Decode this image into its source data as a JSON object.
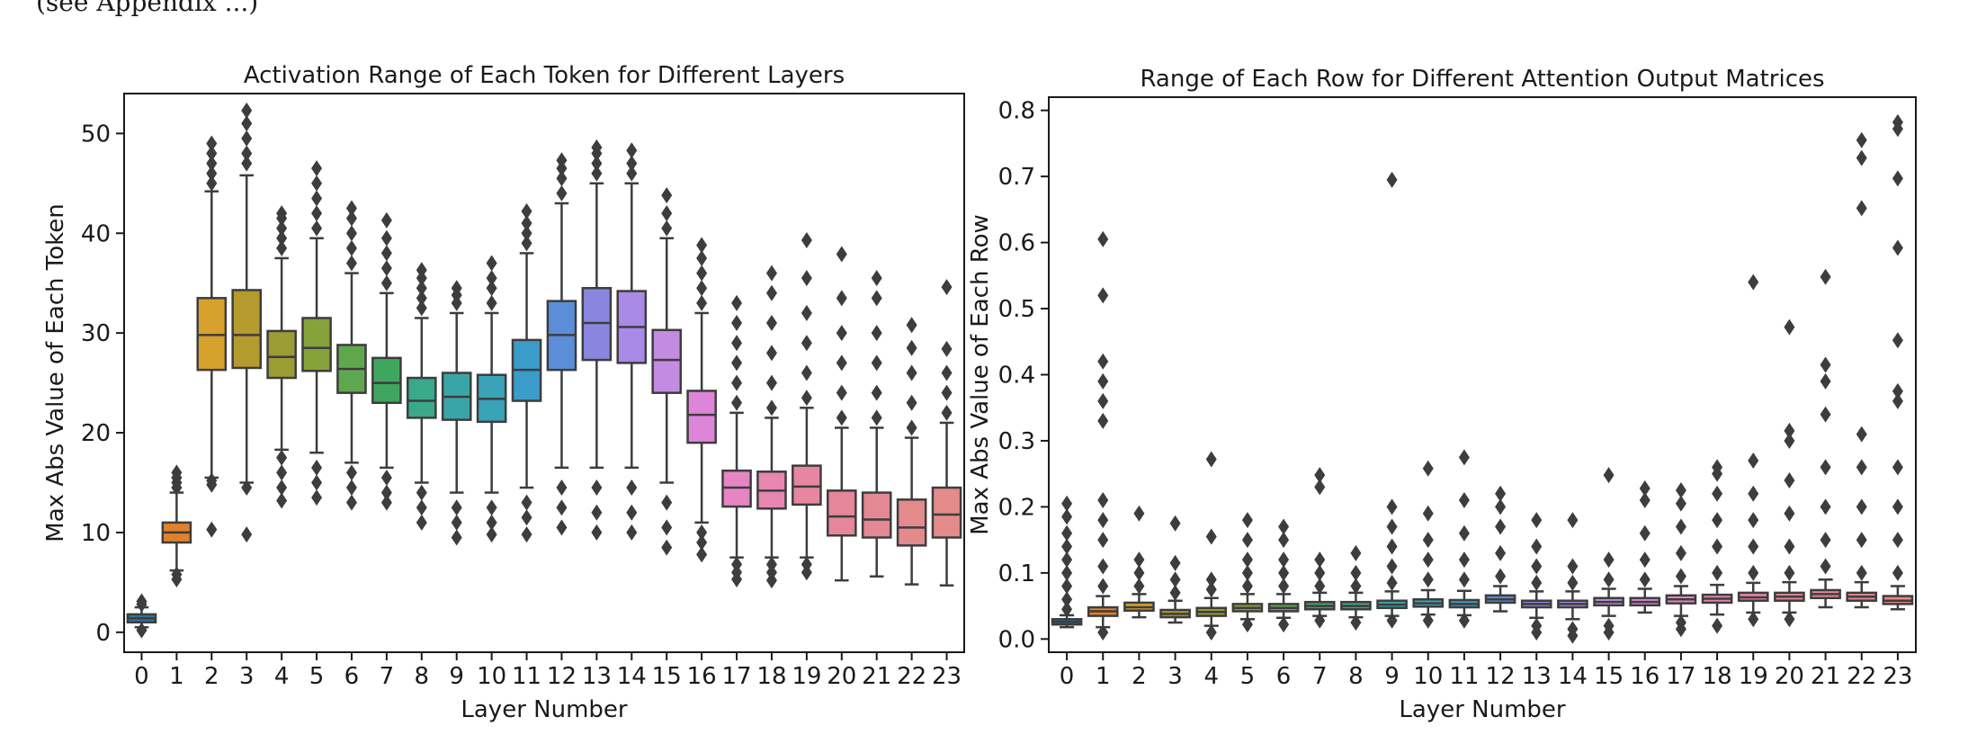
{
  "page": {
    "top_fragment": "(see Appendix ...)"
  },
  "chart_data": [
    {
      "type": "box",
      "title": "Activation Range of Each Token for Different Layers",
      "xlabel": "Layer Number",
      "ylabel": "Max Abs Value of Each Token",
      "categories": [
        "0",
        "1",
        "2",
        "3",
        "4",
        "5",
        "6",
        "7",
        "8",
        "9",
        "10",
        "11",
        "12",
        "13",
        "14",
        "15",
        "16",
        "17",
        "18",
        "19",
        "20",
        "21",
        "22",
        "23"
      ],
      "ylim": [
        -2,
        54
      ],
      "yticks": [
        0,
        10,
        20,
        30,
        40,
        50
      ],
      "colors": [
        "#3274a1",
        "#e1812c",
        "#d6a12d",
        "#b59a2e",
        "#9b9c33",
        "#86a23a",
        "#5fa74e",
        "#3fa65f",
        "#3aa98a",
        "#3aa5a6",
        "#3aa3b8",
        "#3b9bc9",
        "#5b8ed9",
        "#8a86e0",
        "#a98ae6",
        "#c48be2",
        "#dd86d9",
        "#e586c3",
        "#e786b0",
        "#e786a1",
        "#e6869a",
        "#e48894",
        "#e38a8d",
        "#e38b8b"
      ],
      "boxes": [
        {
          "q1": 1.0,
          "median": 1.4,
          "q3": 1.8,
          "whislo": 0.5,
          "whishi": 2.5,
          "fliers_lo": [
            0.2
          ],
          "fliers_hi": [
            2.8,
            3.1
          ]
        },
        {
          "q1": 9.0,
          "median": 10.0,
          "q3": 11.0,
          "whislo": 6.2,
          "whishi": 14.0,
          "fliers_lo": [
            5.3,
            5.8
          ],
          "fliers_hi": [
            14.5,
            15.0,
            15.5,
            16.0
          ]
        },
        {
          "q1": 26.3,
          "median": 29.8,
          "q3": 33.5,
          "whislo": 15.5,
          "whishi": 44.2,
          "fliers_lo": [
            10.3,
            14.8,
            15.2
          ],
          "fliers_hi": [
            45.0,
            46.0,
            47.0,
            48.0,
            49.0
          ]
        },
        {
          "q1": 26.5,
          "median": 29.8,
          "q3": 34.3,
          "whislo": 15.0,
          "whishi": 45.8,
          "fliers_lo": [
            9.8,
            14.5
          ],
          "fliers_hi": [
            47.0,
            48.0,
            49.5,
            51.0,
            52.3
          ]
        },
        {
          "q1": 25.5,
          "median": 27.6,
          "q3": 30.2,
          "whislo": 18.3,
          "whishi": 37.5,
          "fliers_lo": [
            13.2,
            14.5,
            16.0,
            17.5
          ],
          "fliers_hi": [
            38.5,
            39.5,
            40.5,
            41.5,
            42.0
          ]
        },
        {
          "q1": 26.2,
          "median": 28.5,
          "q3": 31.5,
          "whislo": 18.0,
          "whishi": 39.5,
          "fliers_lo": [
            13.5,
            15.0,
            16.5
          ],
          "fliers_hi": [
            40.5,
            42.0,
            43.5,
            45.0,
            46.5
          ]
        },
        {
          "q1": 24.0,
          "median": 26.4,
          "q3": 28.8,
          "whislo": 17.0,
          "whishi": 36.0,
          "fliers_lo": [
            13.0,
            14.5,
            16.0
          ],
          "fliers_hi": [
            37.0,
            38.5,
            40.0,
            41.5,
            42.5
          ]
        },
        {
          "q1": 23.0,
          "median": 25.0,
          "q3": 27.5,
          "whislo": 16.5,
          "whishi": 34.0,
          "fliers_lo": [
            13.0,
            14.0,
            15.5
          ],
          "fliers_hi": [
            35.0,
            36.5,
            38.0,
            39.5,
            41.3
          ]
        },
        {
          "q1": 21.5,
          "median": 23.2,
          "q3": 25.5,
          "whislo": 15.0,
          "whishi": 31.5,
          "fliers_lo": [
            11.0,
            12.5,
            14.0
          ],
          "fliers_hi": [
            32.5,
            33.5,
            34.5,
            35.5,
            36.3
          ]
        },
        {
          "q1": 21.3,
          "median": 23.6,
          "q3": 26.0,
          "whislo": 14.0,
          "whishi": 32.0,
          "fliers_lo": [
            9.5,
            11.0,
            12.5
          ],
          "fliers_hi": [
            33.0,
            33.8,
            34.5
          ]
        },
        {
          "q1": 21.1,
          "median": 23.4,
          "q3": 25.8,
          "whislo": 14.0,
          "whishi": 32.0,
          "fliers_lo": [
            9.8,
            11.0,
            12.5
          ],
          "fliers_hi": [
            33.0,
            34.5,
            35.5,
            37.0
          ]
        },
        {
          "q1": 23.2,
          "median": 26.3,
          "q3": 29.3,
          "whislo": 14.5,
          "whishi": 38.0,
          "fliers_lo": [
            9.8,
            11.5,
            13.0
          ],
          "fliers_hi": [
            39.0,
            40.0,
            41.0,
            42.2
          ]
        },
        {
          "q1": 26.3,
          "median": 29.8,
          "q3": 33.2,
          "whislo": 16.5,
          "whishi": 43.0,
          "fliers_lo": [
            10.5,
            12.5,
            14.5
          ],
          "fliers_hi": [
            44.0,
            45.5,
            46.5,
            47.3
          ]
        },
        {
          "q1": 27.3,
          "median": 31.0,
          "q3": 34.5,
          "whislo": 16.5,
          "whishi": 45.0,
          "fliers_lo": [
            10.0,
            12.0,
            14.5
          ],
          "fliers_hi": [
            46.0,
            47.0,
            48.0,
            48.6
          ]
        },
        {
          "q1": 27.0,
          "median": 30.6,
          "q3": 34.2,
          "whislo": 16.5,
          "whishi": 45.0,
          "fliers_lo": [
            10.0,
            12.0,
            14.5
          ],
          "fliers_hi": [
            46.0,
            47.0,
            48.3
          ]
        },
        {
          "q1": 24.0,
          "median": 27.3,
          "q3": 30.3,
          "whislo": 15.0,
          "whishi": 39.5,
          "fliers_lo": [
            8.5,
            10.5,
            13.0
          ],
          "fliers_hi": [
            40.5,
            42.0,
            43.8
          ]
        },
        {
          "q1": 19.0,
          "median": 21.8,
          "q3": 24.2,
          "whislo": 11.0,
          "whishi": 32.0,
          "fliers_lo": [
            7.8,
            9.0,
            10.0
          ],
          "fliers_hi": [
            33.0,
            34.5,
            36.0,
            37.5,
            38.8
          ]
        },
        {
          "q1": 12.6,
          "median": 14.5,
          "q3": 16.2,
          "whislo": 7.5,
          "whishi": 22.0,
          "fliers_lo": [
            5.3,
            6.0,
            6.8
          ],
          "fliers_hi": [
            23.0,
            25.0,
            27.0,
            29.0,
            31.0,
            33.0
          ]
        },
        {
          "q1": 12.4,
          "median": 14.2,
          "q3": 16.1,
          "whislo": 7.5,
          "whishi": 21.5,
          "fliers_lo": [
            5.2,
            6.0,
            6.8
          ],
          "fliers_hi": [
            22.5,
            25.0,
            28.0,
            31.0,
            34.0,
            36.0
          ]
        },
        {
          "q1": 12.8,
          "median": 14.6,
          "q3": 16.7,
          "whislo": 7.5,
          "whishi": 22.5,
          "fliers_lo": [
            6.0,
            6.8
          ],
          "fliers_hi": [
            23.5,
            26.0,
            29.0,
            32.0,
            35.5,
            39.3
          ]
        },
        {
          "q1": 9.7,
          "median": 11.6,
          "q3": 14.2,
          "whislo": 5.2,
          "whishi": 20.5,
          "fliers_lo": [],
          "fliers_hi": [
            21.5,
            24.0,
            27.0,
            30.0,
            33.5,
            37.9
          ]
        },
        {
          "q1": 9.5,
          "median": 11.3,
          "q3": 14.0,
          "whislo": 5.6,
          "whishi": 20.5,
          "fliers_lo": [],
          "fliers_hi": [
            21.5,
            24.0,
            27.0,
            30.0,
            33.5,
            35.5
          ]
        },
        {
          "q1": 8.7,
          "median": 10.5,
          "q3": 13.3,
          "whislo": 4.8,
          "whishi": 19.5,
          "fliers_lo": [],
          "fliers_hi": [
            20.5,
            23.0,
            26.0,
            28.5,
            30.8
          ]
        },
        {
          "q1": 9.5,
          "median": 11.8,
          "q3": 14.5,
          "whislo": 4.7,
          "whishi": 21.0,
          "fliers_lo": [],
          "fliers_hi": [
            22.0,
            24.0,
            26.0,
            28.4,
            34.6
          ]
        }
      ]
    },
    {
      "type": "box",
      "title": "Range of Each Row for Different Attention Output Matrices",
      "xlabel": "Layer Number",
      "ylabel": "Max Abs Value of Each Row",
      "categories": [
        "0",
        "1",
        "2",
        "3",
        "4",
        "5",
        "6",
        "7",
        "8",
        "9",
        "10",
        "11",
        "12",
        "13",
        "14",
        "15",
        "16",
        "17",
        "18",
        "19",
        "20",
        "21",
        "22",
        "23"
      ],
      "ylim": [
        -0.02,
        0.82
      ],
      "yticks": [
        0.0,
        0.1,
        0.2,
        0.3,
        0.4,
        0.5,
        0.6,
        0.7,
        0.8
      ],
      "colors": [
        "#3274a1",
        "#e1812c",
        "#d6a12d",
        "#b59a2e",
        "#9b9c33",
        "#86a23a",
        "#5fa74e",
        "#3fa65f",
        "#3aa98a",
        "#3aa5a6",
        "#3aa3b8",
        "#3b9bc9",
        "#5b8ed9",
        "#8a86e0",
        "#a98ae6",
        "#c48be2",
        "#dd86d9",
        "#e586c3",
        "#e786b0",
        "#e786a1",
        "#e6869a",
        "#e48894",
        "#e38a8d",
        "#e38b8b"
      ],
      "boxes": [
        {
          "q1": 0.022,
          "median": 0.026,
          "q3": 0.03,
          "whislo": 0.018,
          "whishi": 0.036,
          "fliers_lo": [],
          "fliers_hi": [
            0.045,
            0.06,
            0.08,
            0.1,
            0.12,
            0.14,
            0.16,
            0.185,
            0.205
          ]
        },
        {
          "q1": 0.035,
          "median": 0.042,
          "q3": 0.048,
          "whislo": 0.018,
          "whishi": 0.065,
          "fliers_lo": [
            0.01
          ],
          "fliers_hi": [
            0.08,
            0.11,
            0.15,
            0.18,
            0.21,
            0.33,
            0.36,
            0.39,
            0.42,
            0.52,
            0.605
          ]
        },
        {
          "q1": 0.043,
          "median": 0.048,
          "q3": 0.055,
          "whislo": 0.033,
          "whishi": 0.068,
          "fliers_lo": [],
          "fliers_hi": [
            0.08,
            0.1,
            0.12,
            0.19
          ]
        },
        {
          "q1": 0.033,
          "median": 0.038,
          "q3": 0.044,
          "whislo": 0.025,
          "whishi": 0.058,
          "fliers_lo": [],
          "fliers_hi": [
            0.07,
            0.09,
            0.115,
            0.175
          ]
        },
        {
          "q1": 0.035,
          "median": 0.041,
          "q3": 0.047,
          "whislo": 0.02,
          "whishi": 0.062,
          "fliers_lo": [
            0.01
          ],
          "fliers_hi": [
            0.075,
            0.09,
            0.155,
            0.272
          ]
        },
        {
          "q1": 0.042,
          "median": 0.047,
          "q3": 0.053,
          "whislo": 0.03,
          "whishi": 0.068,
          "fliers_lo": [
            0.022
          ],
          "fliers_hi": [
            0.08,
            0.1,
            0.12,
            0.15,
            0.18
          ]
        },
        {
          "q1": 0.042,
          "median": 0.047,
          "q3": 0.053,
          "whislo": 0.032,
          "whishi": 0.068,
          "fliers_lo": [
            0.022
          ],
          "fliers_hi": [
            0.08,
            0.1,
            0.12,
            0.15,
            0.17
          ]
        },
        {
          "q1": 0.045,
          "median": 0.05,
          "q3": 0.056,
          "whislo": 0.035,
          "whishi": 0.07,
          "fliers_lo": [
            0.028
          ],
          "fliers_hi": [
            0.08,
            0.1,
            0.12,
            0.23,
            0.248
          ]
        },
        {
          "q1": 0.045,
          "median": 0.05,
          "q3": 0.056,
          "whislo": 0.033,
          "whishi": 0.07,
          "fliers_lo": [
            0.025
          ],
          "fliers_hi": [
            0.08,
            0.1,
            0.13
          ]
        },
        {
          "q1": 0.047,
          "median": 0.052,
          "q3": 0.058,
          "whislo": 0.035,
          "whishi": 0.072,
          "fliers_lo": [
            0.028
          ],
          "fliers_hi": [
            0.085,
            0.11,
            0.14,
            0.17,
            0.2,
            0.695
          ]
        },
        {
          "q1": 0.049,
          "median": 0.054,
          "q3": 0.06,
          "whislo": 0.037,
          "whishi": 0.074,
          "fliers_lo": [
            0.028
          ],
          "fliers_hi": [
            0.09,
            0.12,
            0.15,
            0.19,
            0.258
          ]
        },
        {
          "q1": 0.048,
          "median": 0.053,
          "q3": 0.059,
          "whislo": 0.036,
          "whishi": 0.073,
          "fliers_lo": [
            0.028
          ],
          "fliers_hi": [
            0.09,
            0.12,
            0.16,
            0.21,
            0.275
          ]
        },
        {
          "q1": 0.055,
          "median": 0.06,
          "q3": 0.066,
          "whislo": 0.042,
          "whishi": 0.08,
          "fliers_lo": [],
          "fliers_hi": [
            0.095,
            0.13,
            0.17,
            0.2,
            0.22
          ]
        },
        {
          "q1": 0.048,
          "median": 0.053,
          "q3": 0.058,
          "whislo": 0.032,
          "whishi": 0.072,
          "fliers_lo": [
            0.01,
            0.02
          ],
          "fliers_hi": [
            0.085,
            0.11,
            0.14,
            0.18
          ]
        },
        {
          "q1": 0.048,
          "median": 0.053,
          "q3": 0.058,
          "whislo": 0.03,
          "whishi": 0.072,
          "fliers_lo": [
            0.005,
            0.015
          ],
          "fliers_hi": [
            0.085,
            0.11,
            0.18
          ]
        },
        {
          "q1": 0.051,
          "median": 0.056,
          "q3": 0.062,
          "whislo": 0.035,
          "whishi": 0.076,
          "fliers_lo": [
            0.01,
            0.02
          ],
          "fliers_hi": [
            0.09,
            0.12,
            0.248
          ]
        },
        {
          "q1": 0.051,
          "median": 0.056,
          "q3": 0.062,
          "whislo": 0.04,
          "whishi": 0.076,
          "fliers_lo": [],
          "fliers_hi": [
            0.09,
            0.12,
            0.16,
            0.21,
            0.228
          ]
        },
        {
          "q1": 0.054,
          "median": 0.06,
          "q3": 0.066,
          "whislo": 0.035,
          "whishi": 0.08,
          "fliers_lo": [
            0.015,
            0.025
          ],
          "fliers_hi": [
            0.095,
            0.13,
            0.17,
            0.205,
            0.225
          ]
        },
        {
          "q1": 0.055,
          "median": 0.061,
          "q3": 0.067,
          "whislo": 0.037,
          "whishi": 0.082,
          "fliers_lo": [
            0.02
          ],
          "fliers_hi": [
            0.1,
            0.14,
            0.18,
            0.22,
            0.25,
            0.26
          ]
        },
        {
          "q1": 0.058,
          "median": 0.063,
          "q3": 0.07,
          "whislo": 0.04,
          "whishi": 0.085,
          "fliers_lo": [
            0.03
          ],
          "fliers_hi": [
            0.1,
            0.14,
            0.18,
            0.22,
            0.27,
            0.54
          ]
        },
        {
          "q1": 0.058,
          "median": 0.064,
          "q3": 0.07,
          "whislo": 0.04,
          "whishi": 0.086,
          "fliers_lo": [
            0.03
          ],
          "fliers_hi": [
            0.1,
            0.14,
            0.19,
            0.24,
            0.3,
            0.315,
            0.472
          ]
        },
        {
          "q1": 0.062,
          "median": 0.068,
          "q3": 0.074,
          "whislo": 0.048,
          "whishi": 0.09,
          "fliers_lo": [],
          "fliers_hi": [
            0.11,
            0.15,
            0.2,
            0.26,
            0.34,
            0.39,
            0.415,
            0.548
          ]
        },
        {
          "q1": 0.058,
          "median": 0.064,
          "q3": 0.07,
          "whislo": 0.048,
          "whishi": 0.086,
          "fliers_lo": [],
          "fliers_hi": [
            0.1,
            0.15,
            0.2,
            0.26,
            0.31,
            0.652,
            0.728,
            0.755
          ]
        },
        {
          "q1": 0.053,
          "median": 0.058,
          "q3": 0.065,
          "whislo": 0.045,
          "whishi": 0.08,
          "fliers_lo": [],
          "fliers_hi": [
            0.1,
            0.15,
            0.2,
            0.26,
            0.36,
            0.375,
            0.452,
            0.592,
            0.697,
            0.772,
            0.782
          ]
        }
      ]
    }
  ]
}
